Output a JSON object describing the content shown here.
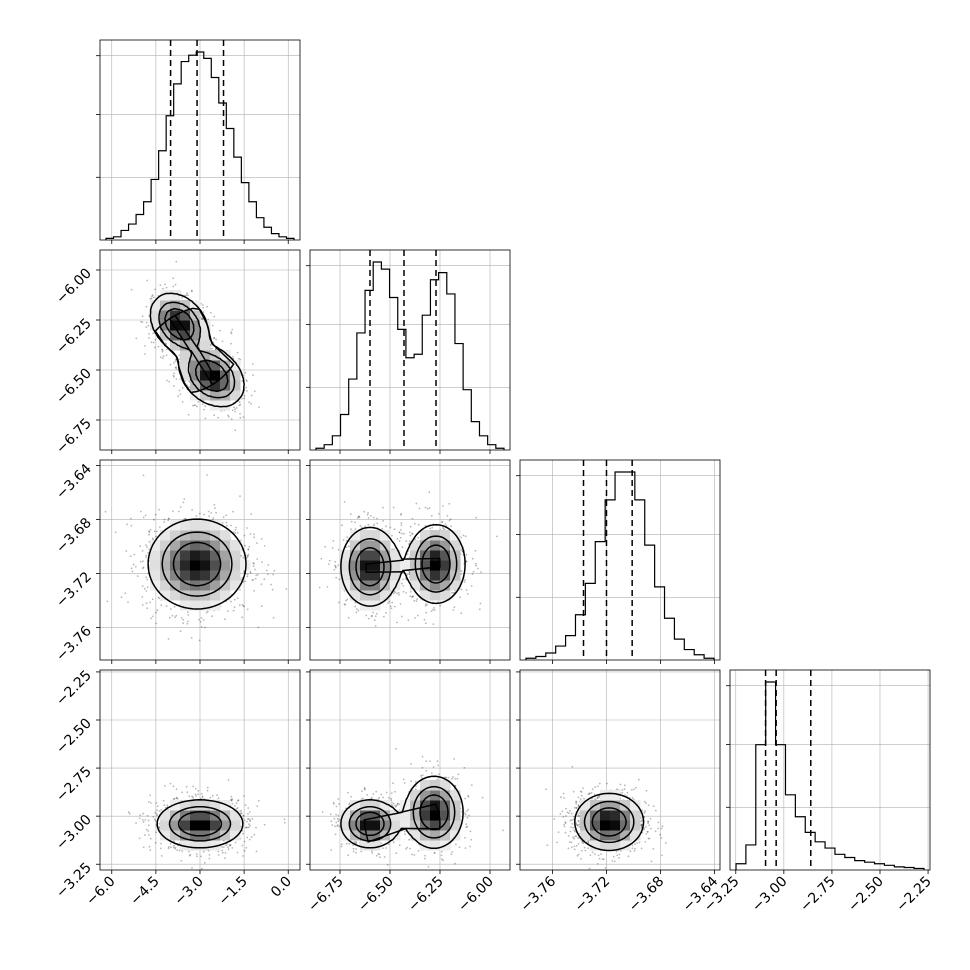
{
  "figure": {
    "type": "corner-plot",
    "params": 4
  },
  "chart_data": {
    "type": "corner",
    "params": [
      {
        "range": [
          -6.4,
          0.4
        ],
        "ticks": [
          -6.0,
          -4.5,
          -3.0,
          -1.5,
          0.0
        ],
        "tick_labels": [
          "−6.0",
          "−4.5",
          "−3.0",
          "−1.5",
          "0.0"
        ],
        "quantiles": [
          -4.0,
          -3.1,
          -2.2
        ],
        "hist": [
          0.5,
          1,
          3,
          5,
          8,
          12,
          19,
          28,
          39,
          49,
          56,
          58,
          59,
          57,
          51,
          43,
          35,
          26,
          18,
          12,
          7,
          4,
          2,
          1,
          0.5
        ]
      },
      {
        "range": [
          -6.9,
          -5.9
        ],
        "ticks": [
          -6.75,
          -6.5,
          -6.25,
          -6.0
        ],
        "tick_labels": [
          "−6.75",
          "−6.50",
          "−6.25",
          "−6.00"
        ],
        "quantiles": [
          -6.6,
          -6.43,
          -6.27
        ],
        "hist": [
          0.5,
          1.5,
          4,
          10,
          20,
          33,
          45,
          53,
          51,
          43,
          34,
          26,
          27,
          38,
          48,
          50,
          44,
          30,
          17,
          8,
          4,
          1.5,
          0.5
        ]
      },
      {
        "range": [
          -3.784,
          -3.636
        ],
        "ticks": [
          -3.76,
          -3.72,
          -3.68,
          -3.64
        ],
        "tick_labels": [
          "−3.76",
          "−3.72",
          "−3.68",
          "−3.64"
        ],
        "quantiles": [
          -3.737,
          -3.72,
          -3.701
        ],
        "hist": [
          0.5,
          1,
          2,
          4,
          7,
          13,
          22,
          34,
          46,
          54,
          54,
          46,
          33,
          21,
          12,
          6,
          3,
          1.5,
          0.5
        ]
      },
      {
        "range": [
          -3.28,
          -2.24
        ],
        "ticks": [
          -3.25,
          -3.0,
          -2.75,
          -2.5,
          -2.25
        ],
        "tick_labels": [
          "−3.25",
          "−3.00",
          "−2.75",
          "−2.50",
          "−2.25"
        ],
        "quantiles": [
          -3.095,
          -3.04,
          -2.86
        ],
        "hist": [
          2,
          8,
          40,
          60,
          40,
          24,
          17,
          12,
          9,
          7,
          5,
          4,
          3,
          2.5,
          2,
          1.5,
          1,
          0.8,
          0.5
        ]
      }
    ],
    "pairs": [
      {
        "row": 1,
        "col": 0,
        "modes": [
          {
            "x": -3.7,
            "y": -6.27,
            "sx": 0.45,
            "sy": 0.07,
            "w": 0.5
          },
          {
            "x": -2.6,
            "y": -6.53,
            "sx": 0.5,
            "sy": 0.07,
            "w": 0.5
          }
        ],
        "corr": -0.3
      },
      {
        "row": 2,
        "col": 0,
        "modes": [
          {
            "x": -3.1,
            "y": -3.713,
            "sx": 0.8,
            "sy": 0.016,
            "w": 1
          }
        ],
        "corr": 0
      },
      {
        "row": 2,
        "col": 1,
        "modes": [
          {
            "x": -6.6,
            "y": -3.715,
            "sx": 0.07,
            "sy": 0.014,
            "w": 0.5
          },
          {
            "x": -6.27,
            "y": -3.713,
            "sx": 0.07,
            "sy": 0.014,
            "w": 0.5
          }
        ],
        "corr": 0
      },
      {
        "row": 3,
        "col": 0,
        "modes": [
          {
            "x": -3.0,
            "y": -3.04,
            "sx": 0.7,
            "sy": 0.06,
            "w": 1
          }
        ],
        "corr": 0
      },
      {
        "row": 3,
        "col": 1,
        "modes": [
          {
            "x": -6.6,
            "y": -3.04,
            "sx": 0.07,
            "sy": 0.06,
            "w": 0.5
          },
          {
            "x": -6.28,
            "y": -2.98,
            "sx": 0.07,
            "sy": 0.09,
            "w": 0.5
          }
        ],
        "corr": 0
      },
      {
        "row": 3,
        "col": 2,
        "modes": [
          {
            "x": -3.718,
            "y": -3.03,
            "sx": 0.012,
            "sy": 0.07,
            "w": 1
          }
        ],
        "corr": 0
      }
    ]
  }
}
